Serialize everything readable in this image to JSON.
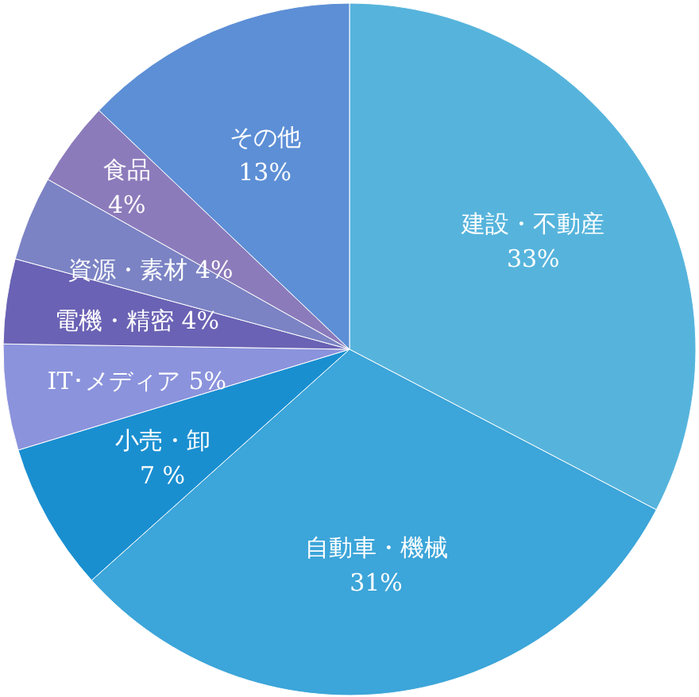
{
  "chart_data": {
    "type": "pie",
    "categories": [
      "建設・不動産",
      "自動車・機械",
      "小売・卸",
      "IT･メディア",
      "電機・精密",
      "資源・素材",
      "食品",
      "その他"
    ],
    "values": [
      33,
      31,
      7,
      5,
      4,
      4,
      4,
      13
    ],
    "value_labels": [
      "33%",
      "31%",
      "7 %",
      "5%",
      "4%",
      "4%",
      "4%",
      "13%"
    ],
    "colors": [
      "#56b4dc",
      "#3ca5d9",
      "#1a8fd0",
      "#8b93dc",
      "#6a62b4",
      "#7b83c4",
      "#8c7bbb",
      "#5d8fd6"
    ]
  }
}
